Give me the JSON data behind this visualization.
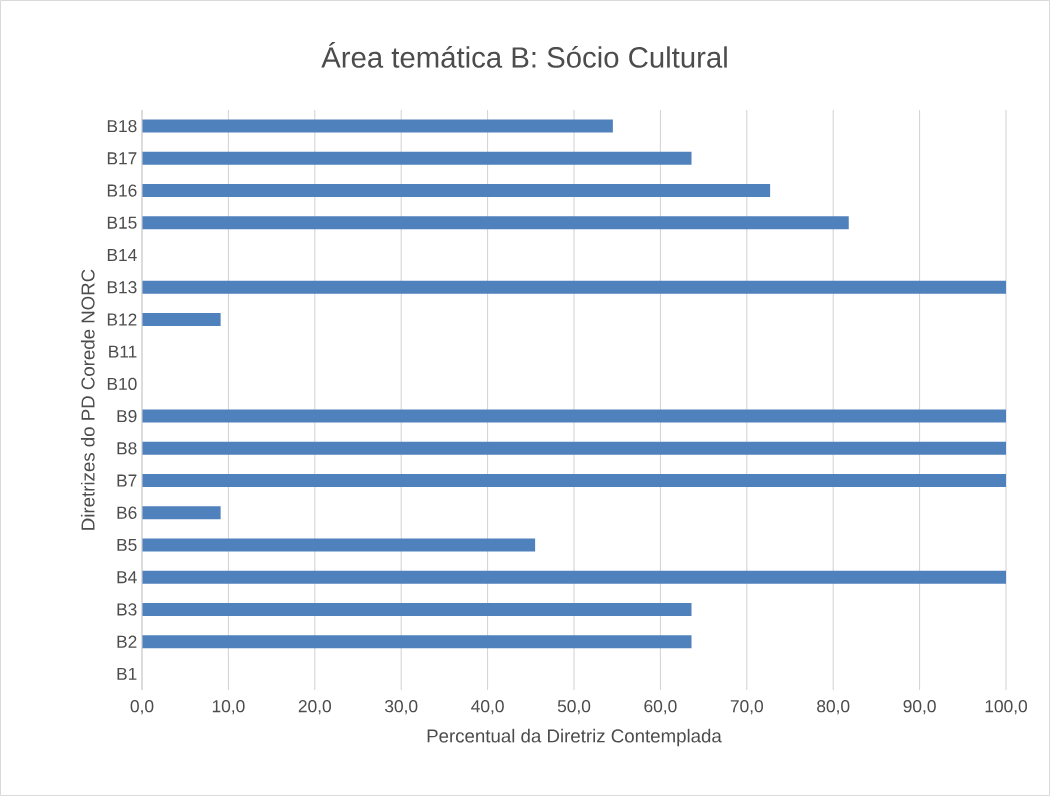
{
  "chart_data": {
    "type": "bar",
    "orientation": "horizontal",
    "title": "Área temática B: Sócio Cultural",
    "xlabel": "Percentual da Diretriz Contemplada",
    "ylabel": "Diretrizes do PD Corede NORC",
    "categories": [
      "B18",
      "B17",
      "B16",
      "B15",
      "B14",
      "B13",
      "B12",
      "B11",
      "B10",
      "B9",
      "B8",
      "B7",
      "B6",
      "B5",
      "B4",
      "B3",
      "B2",
      "B1"
    ],
    "values": [
      54.5,
      63.6,
      72.7,
      81.8,
      0,
      100,
      9.1,
      0,
      0,
      100,
      100,
      100,
      9.1,
      45.5,
      100,
      63.6,
      63.6,
      0
    ],
    "color": "#4f81bd",
    "xlim": [
      0,
      100
    ],
    "xticks": [
      {
        "value": 0,
        "label": "0,0"
      },
      {
        "value": 10,
        "label": "10,0"
      },
      {
        "value": 20,
        "label": "20,0"
      },
      {
        "value": 30,
        "label": "30,0"
      },
      {
        "value": 40,
        "label": "40,0"
      },
      {
        "value": 50,
        "label": "50,0"
      },
      {
        "value": 60,
        "label": "60,0"
      },
      {
        "value": 70,
        "label": "70,0"
      },
      {
        "value": 80,
        "label": "80,0"
      },
      {
        "value": 90,
        "label": "90,0"
      },
      {
        "value": 100,
        "label": "100,0"
      }
    ],
    "grid": "x"
  }
}
